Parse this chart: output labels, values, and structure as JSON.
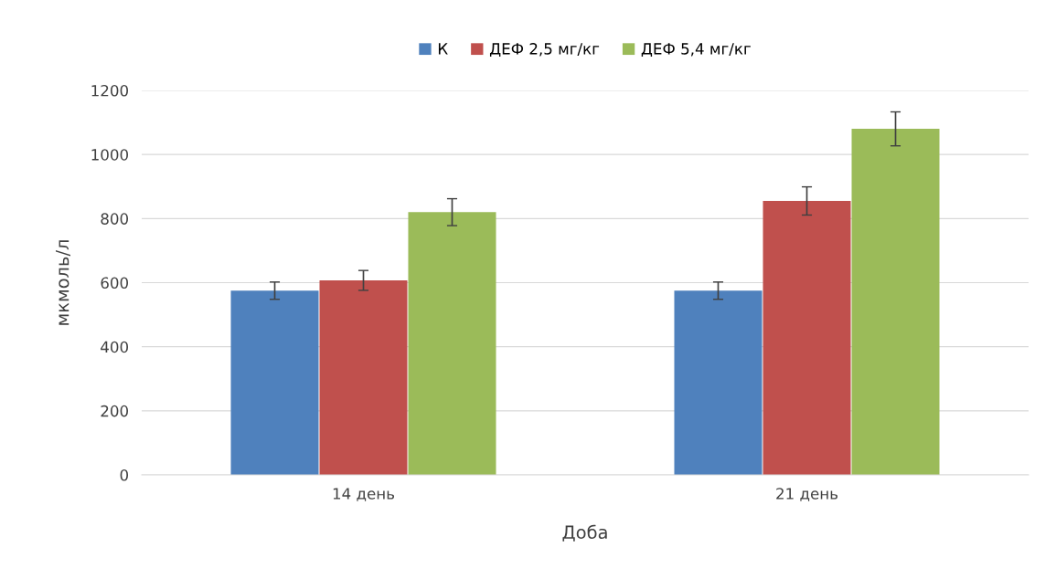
{
  "chart_data": {
    "type": "bar",
    "xlabel": "Доба",
    "ylabel": "мкмоль/л",
    "categories": [
      "14 день",
      "21 день"
    ],
    "series": [
      {
        "name": "К",
        "color": "#4f81bd",
        "values": [
          575,
          575
        ],
        "errors": [
          27,
          27
        ]
      },
      {
        "name": "ДЕФ 2,5 мг/кг",
        "color": "#c0504d",
        "values": [
          607,
          855
        ],
        "errors": [
          31,
          44
        ]
      },
      {
        "name": "ДЕФ 5,4 мг/кг",
        "color": "#9bbb59",
        "values": [
          820,
          1080
        ],
        "errors": [
          42,
          53
        ]
      }
    ],
    "ylim": [
      0,
      1200
    ],
    "yticks": [
      0,
      200,
      400,
      600,
      800,
      1000,
      1200
    ],
    "grid": "y",
    "legend": "top"
  }
}
